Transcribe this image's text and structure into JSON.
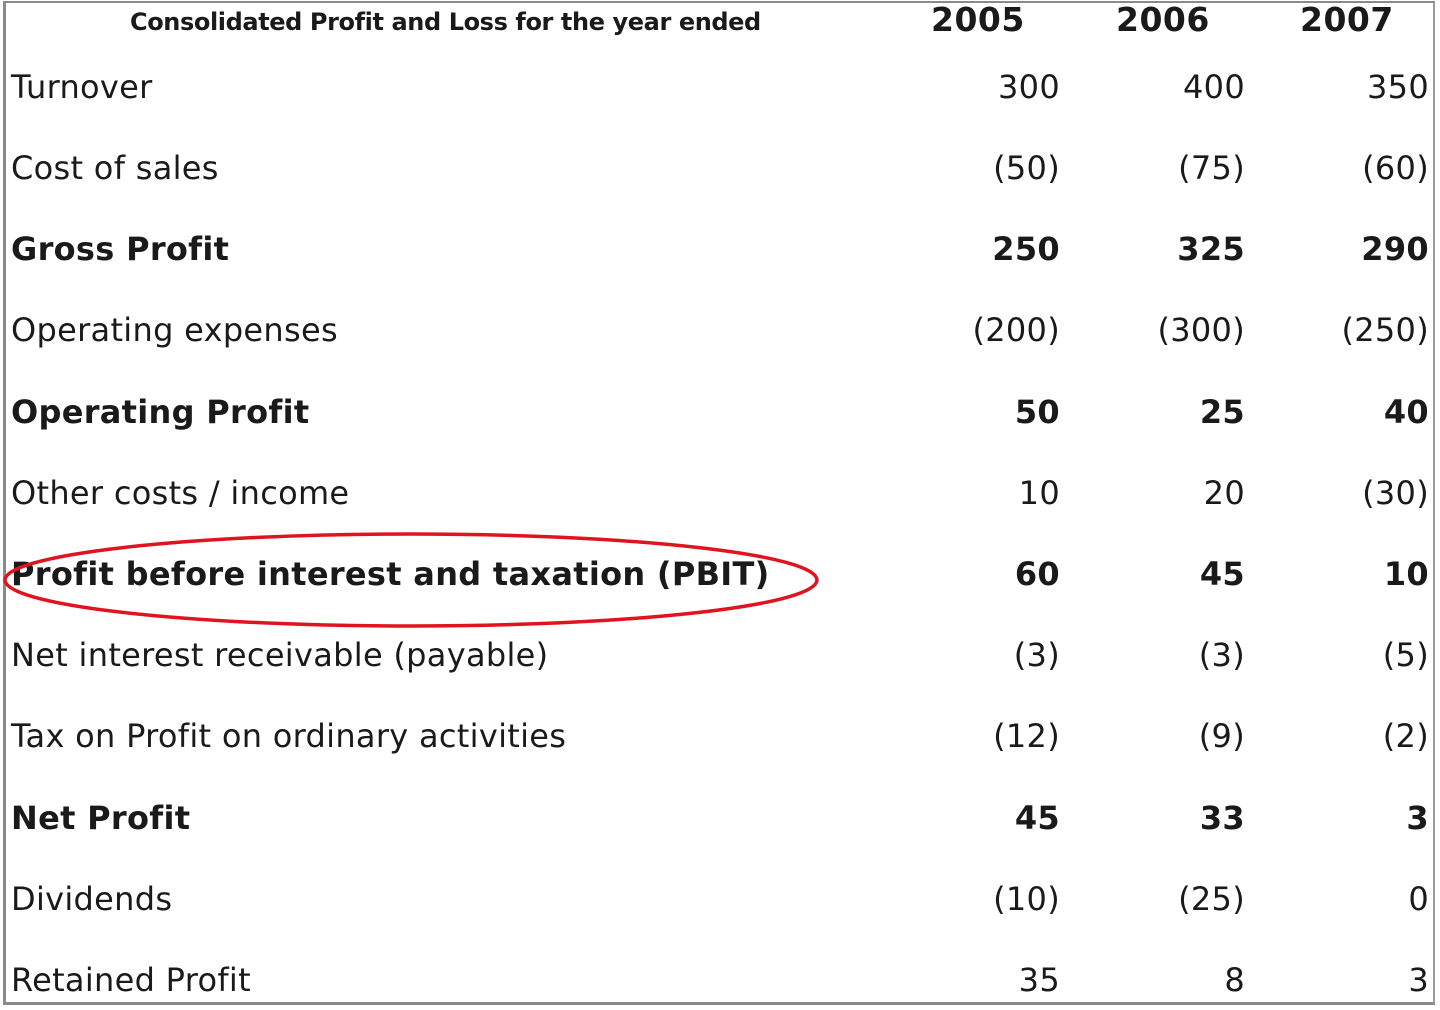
{
  "title": "Consolidated Profit and Loss for the year ended",
  "years": [
    "2005",
    "2006",
    "2007"
  ],
  "rows": [
    {
      "label": "Turnover",
      "v2005": "300",
      "v2006": "400",
      "v2007": "350",
      "bold": false
    },
    {
      "label": "Cost of sales",
      "v2005": "(50)",
      "v2006": "(75)",
      "v2007": "(60)",
      "bold": false
    },
    {
      "label": "Gross Profit",
      "v2005": "250",
      "v2006": "325",
      "v2007": "290",
      "bold": true
    },
    {
      "label": "Operating expenses",
      "v2005": "(200)",
      "v2006": "(300)",
      "v2007": "(250)",
      "bold": false
    },
    {
      "label": "Operating Profit",
      "v2005": "50",
      "v2006": "25",
      "v2007": "40",
      "bold": true
    },
    {
      "label": "Other costs / income",
      "v2005": "10",
      "v2006": "20",
      "v2007": "(30)",
      "bold": false
    },
    {
      "label": "Profit before interest and taxation (PBIT)",
      "v2005": "60",
      "v2006": "45",
      "v2007": "10",
      "bold": true
    },
    {
      "label": "Net interest receivable (payable)",
      "v2005": "(3)",
      "v2006": "(3)",
      "v2007": "(5)",
      "bold": false
    },
    {
      "label": "Tax on Profit on ordinary activities",
      "v2005": "(12)",
      "v2006": "(9)",
      "v2007": "(2)",
      "bold": false
    },
    {
      "label": "Net Profit",
      "v2005": "45",
      "v2006": "33",
      "v2007": "3",
      "bold": true
    },
    {
      "label": "Dividends",
      "v2005": "(10)",
      "v2006": "(25)",
      "v2007": "0",
      "bold": false
    },
    {
      "label": "Retained Profit",
      "v2005": "35",
      "v2006": "8",
      "v2007": "3",
      "bold": false
    }
  ],
  "highlight": {
    "row_label": "Profit before interest and taxation (PBIT)",
    "color": "#e0141e"
  }
}
